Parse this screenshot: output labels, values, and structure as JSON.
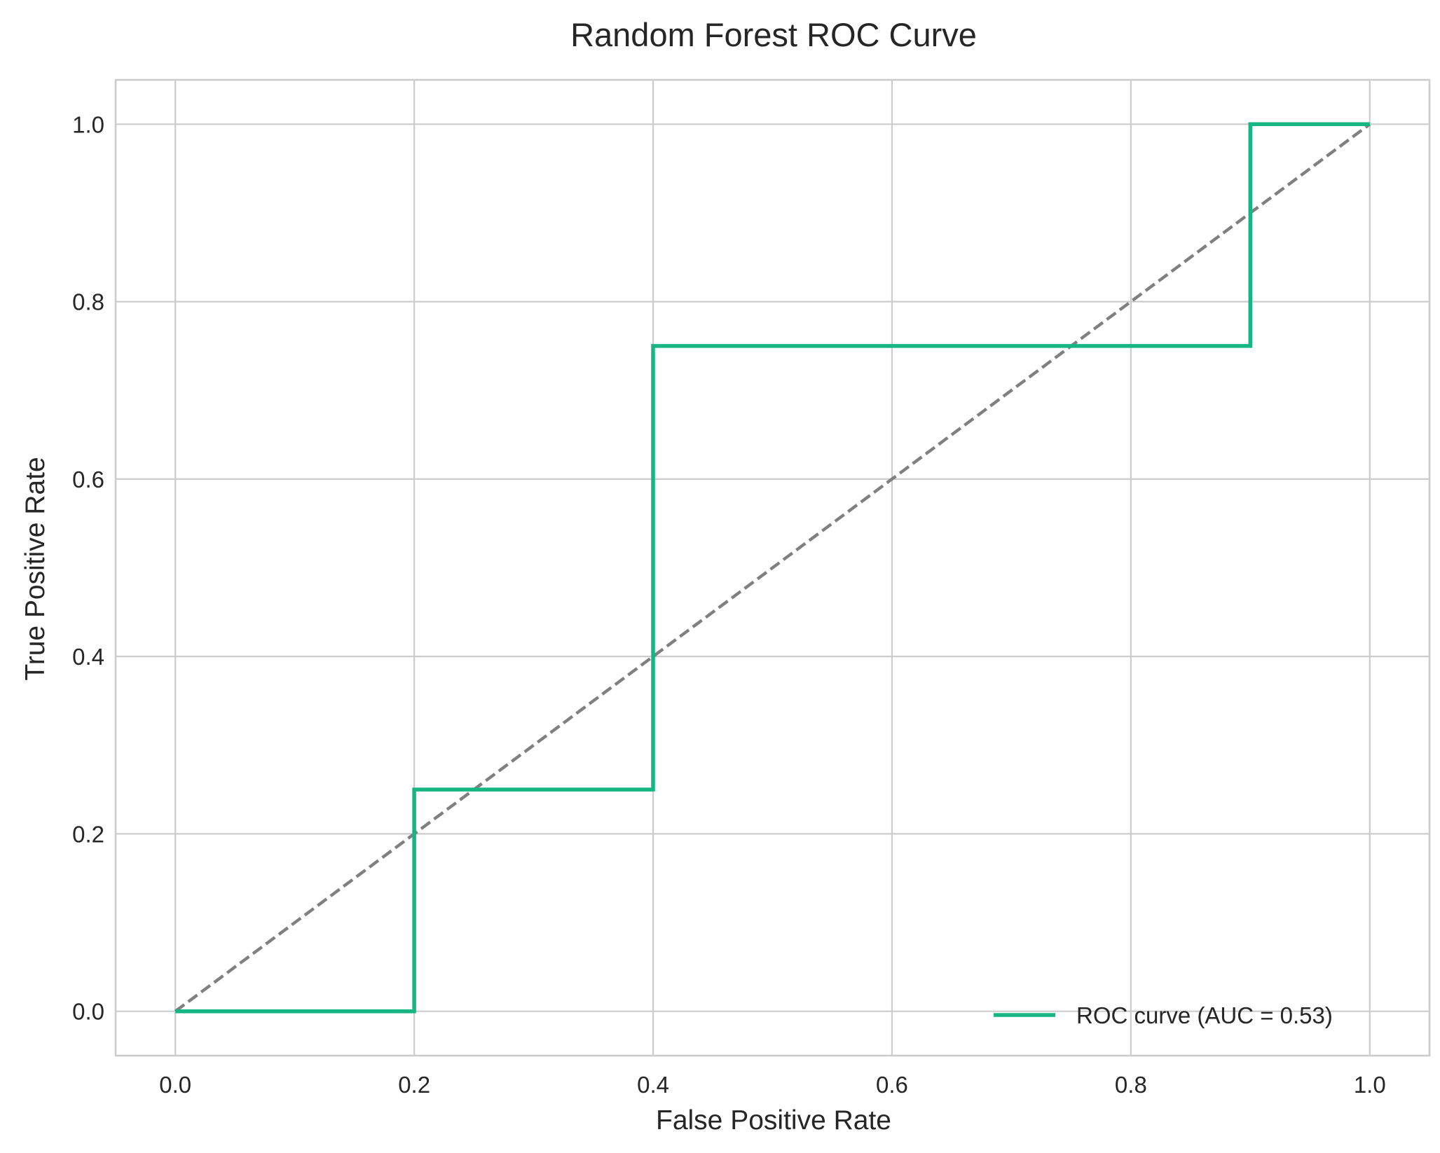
{
  "chart_data": {
    "type": "line",
    "title": "Random Forest ROC Curve",
    "xlabel": "False Positive Rate",
    "ylabel": "True Positive Rate",
    "xlim": [
      -0.05,
      1.05
    ],
    "ylim": [
      -0.05,
      1.05
    ],
    "x_ticks": [
      0.0,
      0.2,
      0.4,
      0.6,
      0.8,
      1.0
    ],
    "x_tick_labels": [
      "0.0",
      "0.2",
      "0.4",
      "0.6",
      "0.8",
      "1.0"
    ],
    "y_ticks": [
      0.0,
      0.2,
      0.4,
      0.6,
      0.8,
      1.0
    ],
    "y_tick_labels": [
      "0.0",
      "0.2",
      "0.4",
      "0.6",
      "0.8",
      "1.0"
    ],
    "grid": true,
    "legend_position": "lower-right",
    "series": [
      {
        "name": "ROC curve (AUC = 0.53)",
        "color": "#16b584",
        "style": "solid",
        "x": [
          0.0,
          0.2,
          0.2,
          0.4,
          0.4,
          0.9,
          0.9,
          1.0
        ],
        "y": [
          0.0,
          0.0,
          0.25,
          0.25,
          0.75,
          0.75,
          1.0,
          1.0
        ]
      },
      {
        "color": "#808080",
        "style": "dashed",
        "x": [
          0.0,
          1.0
        ],
        "y": [
          0.0,
          1.0
        ]
      }
    ]
  }
}
